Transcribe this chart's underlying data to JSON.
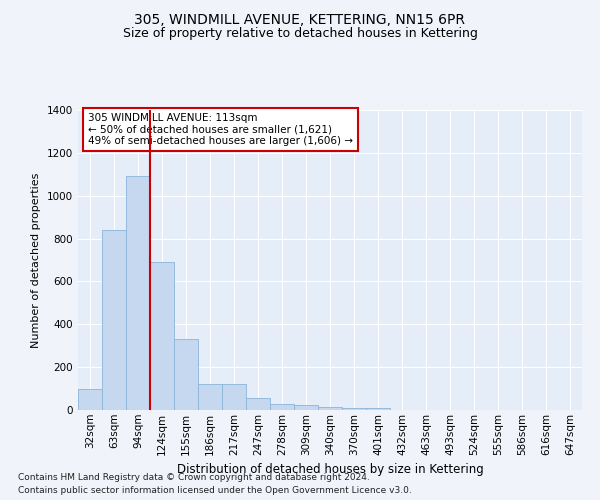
{
  "title": "305, WINDMILL AVENUE, KETTERING, NN15 6PR",
  "subtitle": "Size of property relative to detached houses in Kettering",
  "xlabel": "Distribution of detached houses by size in Kettering",
  "ylabel": "Number of detached properties",
  "categories": [
    "32sqm",
    "63sqm",
    "94sqm",
    "124sqm",
    "155sqm",
    "186sqm",
    "217sqm",
    "247sqm",
    "278sqm",
    "309sqm",
    "340sqm",
    "370sqm",
    "401sqm",
    "432sqm",
    "463sqm",
    "493sqm",
    "524sqm",
    "555sqm",
    "586sqm",
    "616sqm",
    "647sqm"
  ],
  "values": [
    100,
    840,
    1090,
    690,
    330,
    120,
    120,
    55,
    28,
    22,
    15,
    10,
    8,
    0,
    0,
    0,
    0,
    0,
    0,
    0,
    0
  ],
  "bar_color": "#c5d8f0",
  "bar_edge_color": "#8ab4d8",
  "vline_color": "#cc0000",
  "annotation_text": "305 WINDMILL AVENUE: 113sqm\n← 50% of detached houses are smaller (1,621)\n49% of semi-detached houses are larger (1,606) →",
  "annotation_box_facecolor": "#ffffff",
  "annotation_box_edgecolor": "#cc0000",
  "ylim": [
    0,
    1400
  ],
  "yticks": [
    0,
    200,
    400,
    600,
    800,
    1000,
    1200,
    1400
  ],
  "bg_color": "#f0f4fa",
  "plot_bg_color": "#e4edf8",
  "grid_color": "#ffffff",
  "footer_line1": "Contains HM Land Registry data © Crown copyright and database right 2024.",
  "footer_line2": "Contains public sector information licensed under the Open Government Licence v3.0.",
  "title_fontsize": 10,
  "subtitle_fontsize": 9,
  "ylabel_fontsize": 8,
  "xlabel_fontsize": 8.5,
  "tick_fontsize": 7.5,
  "annotation_fontsize": 7.5,
  "footer_fontsize": 6.5
}
